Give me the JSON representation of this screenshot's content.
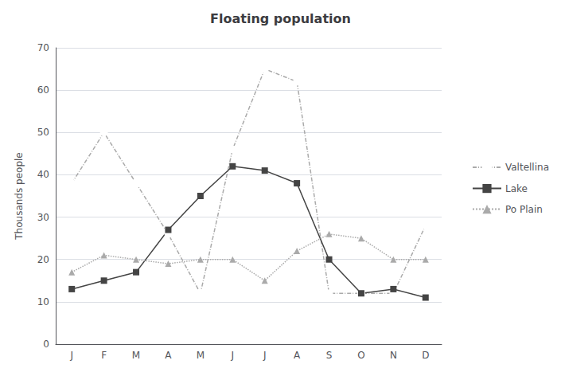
{
  "chart_data": {
    "type": "line",
    "title": "Floating population",
    "y_label": "Thousands people",
    "categories": [
      "J",
      "F",
      "M",
      "A",
      "M",
      "J",
      "J",
      "A",
      "S",
      "O",
      "N",
      "D"
    ],
    "series": [
      {
        "name": "Valtellina",
        "color": "#aaaaaa",
        "marker": "open_circle",
        "line_style": "dashdot",
        "values": [
          38,
          50,
          38,
          26,
          12,
          46,
          65,
          62,
          12,
          12,
          12,
          28
        ]
      },
      {
        "name": "Lake",
        "color": "#444444",
        "marker": "square",
        "line_style": "solid",
        "values": [
          13,
          15,
          17,
          27,
          35,
          42,
          41,
          38,
          20,
          12,
          13,
          11
        ]
      },
      {
        "name": "Po Plain",
        "color": "#aaaaaa",
        "marker": "triangle",
        "line_style": "dotted",
        "values": [
          17,
          21,
          20,
          19,
          20,
          20,
          15,
          22,
          26,
          25,
          20,
          20
        ]
      }
    ],
    "ylim": [
      0,
      70
    ],
    "yticks": [
      0,
      10,
      20,
      30,
      40,
      50,
      60,
      70
    ],
    "grid": true,
    "legend": "right"
  }
}
